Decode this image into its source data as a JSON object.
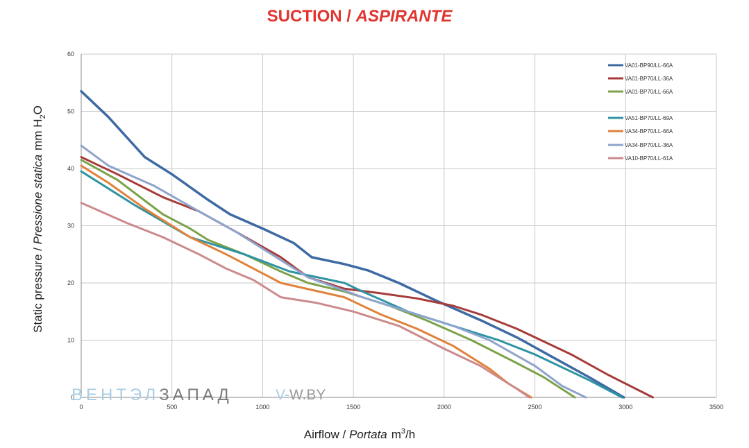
{
  "chart_data": {
    "type": "line",
    "title": {
      "part1": "SUCTION / ",
      "part2": "ASPIRANTE",
      "color": "#e03530"
    },
    "xlabel": {
      "part1": "Airflow / ",
      "part2": "Portata",
      "unit_base": "m",
      "unit_sup": "3",
      "unit_tail": "/h"
    },
    "ylabel": {
      "part1": "Static pressure / ",
      "part2": "Pressione statica",
      "unit_pre": "mm H",
      "unit_sub": "2",
      "unit_post": "O"
    },
    "xlim": [
      0,
      3500
    ],
    "ylim": [
      0,
      60
    ],
    "xticks": [
      "0",
      "500",
      "1000",
      "1500",
      "2000",
      "2500",
      "3000",
      "3500"
    ],
    "yticks": [
      "0",
      "10",
      "20",
      "30",
      "40",
      "50",
      "60"
    ],
    "grid": true,
    "legend_position": "top-right",
    "series": [
      {
        "name": "VA01-BP90/LL-66A",
        "color": "#3d6aa3",
        "x": [
          0,
          150,
          350,
          500,
          700,
          820,
          1000,
          1170,
          1270,
          1450,
          1580,
          1750,
          1950,
          2200,
          2400,
          2600,
          2800,
          2990
        ],
        "y": [
          53.5,
          49,
          42,
          39,
          34.5,
          32,
          29.5,
          27,
          24.5,
          23.3,
          22.2,
          20,
          17,
          13.5,
          10.5,
          7,
          3.5,
          0
        ]
      },
      {
        "name": "VA01-BP70/LL-36A",
        "color": "#a63b3a",
        "x": [
          0,
          200,
          450,
          650,
          850,
          1100,
          1250,
          1450,
          1650,
          1850,
          2050,
          2200,
          2400,
          2700,
          2900,
          3150
        ],
        "y": [
          42,
          39,
          35,
          32.5,
          29,
          24.5,
          21,
          19,
          18.2,
          17.3,
          16,
          14.5,
          12,
          7.5,
          4,
          0
        ]
      },
      {
        "name": "VA01-BP70/LL-66A",
        "color": "#7ca24a",
        "x": [
          0,
          200,
          450,
          600,
          700,
          900,
          1100,
          1250,
          1450,
          1700,
          1900,
          2150,
          2400,
          2550,
          2720
        ],
        "y": [
          41.5,
          38,
          32,
          29.5,
          27.5,
          25,
          22,
          20,
          18.5,
          16,
          13.5,
          10,
          6,
          3.5,
          0
        ]
      },
      {
        "name": "VA51-BP70/LL-69A",
        "color": "#2e93a3",
        "x": [
          0,
          300,
          600,
          900,
          1150,
          1450,
          1550,
          1800,
          2050,
          2300,
          2500,
          2800,
          2980
        ],
        "y": [
          39.5,
          33.5,
          28,
          25,
          22,
          20,
          18.5,
          15,
          12.5,
          10,
          7.5,
          3,
          0
        ]
      },
      {
        "name": "VA34-BP70/LL-66A",
        "color": "#e0823a",
        "x": [
          0,
          150,
          350,
          600,
          800,
          1100,
          1450,
          1650,
          1850,
          2050,
          2250,
          2350,
          2480
        ],
        "y": [
          40.5,
          37.5,
          33,
          28,
          25,
          20,
          17.5,
          14.5,
          12,
          9,
          5,
          2.5,
          0
        ]
      },
      {
        "name": "VA34-BP70/LL-36A",
        "color": "#8ea4cc",
        "x": [
          0,
          150,
          400,
          650,
          850,
          1050,
          1250,
          1550,
          1800,
          2050,
          2250,
          2500,
          2650,
          2780
        ],
        "y": [
          44,
          40.5,
          37,
          32.5,
          29,
          25,
          21,
          17.5,
          15,
          12.5,
          10,
          5.5,
          2,
          0
        ]
      },
      {
        "name": "VA10-BP70/LL-61A",
        "color": "#cc8a8c",
        "x": [
          0,
          250,
          450,
          650,
          800,
          950,
          1100,
          1300,
          1500,
          1750,
          2000,
          2200,
          2400,
          2470
        ],
        "y": [
          34,
          30.5,
          28,
          25,
          22.5,
          20.5,
          17.5,
          16.5,
          15,
          12.5,
          8.5,
          5.5,
          1.5,
          0
        ]
      }
    ]
  },
  "watermark": {
    "text_a": "ВЕНТЭЛ",
    "text_b": "ЗАПАД",
    "text_c": "V-",
    "text_d": "W.BY"
  }
}
